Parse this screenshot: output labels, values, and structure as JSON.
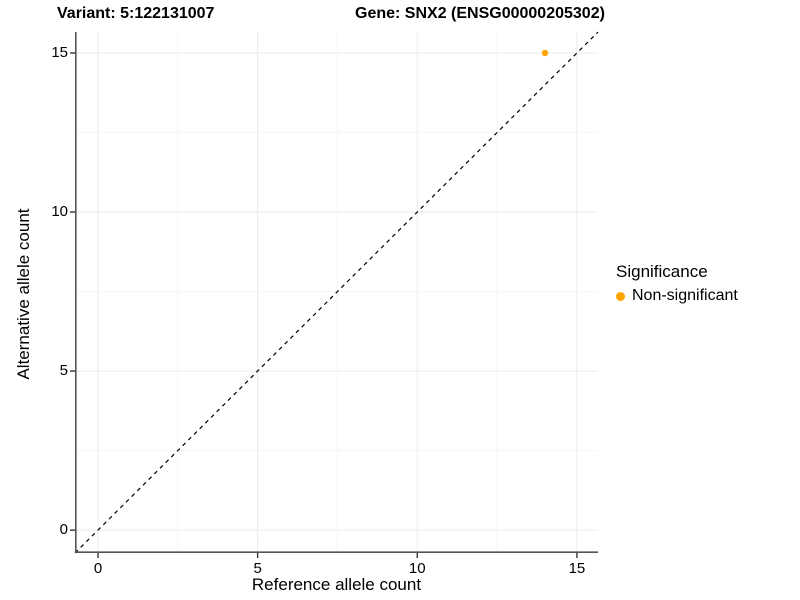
{
  "titles": {
    "variant": "Variant: 5:122131007",
    "gene": "Gene: SNX2 (ENSG00000205302)"
  },
  "chart_data": {
    "type": "scatter",
    "xlabel": "Reference allele count",
    "ylabel": "Alternative allele count",
    "xlim": [
      -0.72,
      15.66
    ],
    "ylim": [
      -0.72,
      15.66
    ],
    "xticks": [
      0,
      5,
      10,
      15
    ],
    "yticks": [
      0,
      5,
      10,
      15
    ],
    "xminor": [
      2.5,
      7.5,
      12.5
    ],
    "yminor": [
      2.5,
      7.5,
      12.5
    ],
    "grid": true,
    "identity_line": true,
    "identity_style": "dashed",
    "points": [
      {
        "x": 14,
        "y": 15,
        "series": "Non-significant"
      }
    ],
    "series": [
      {
        "name": "Non-significant",
        "color": "#FFA500"
      }
    ],
    "legend": {
      "title": "Significance",
      "position": "right",
      "items": [
        {
          "label": "Non-significant",
          "color": "#FFA500"
        }
      ]
    },
    "colors": {
      "grid_major": "#EBEBEB",
      "grid_minor": "#F5F5F5",
      "axis_line": "#555555",
      "tick_mark": "#333333",
      "identity": "#000000"
    }
  }
}
